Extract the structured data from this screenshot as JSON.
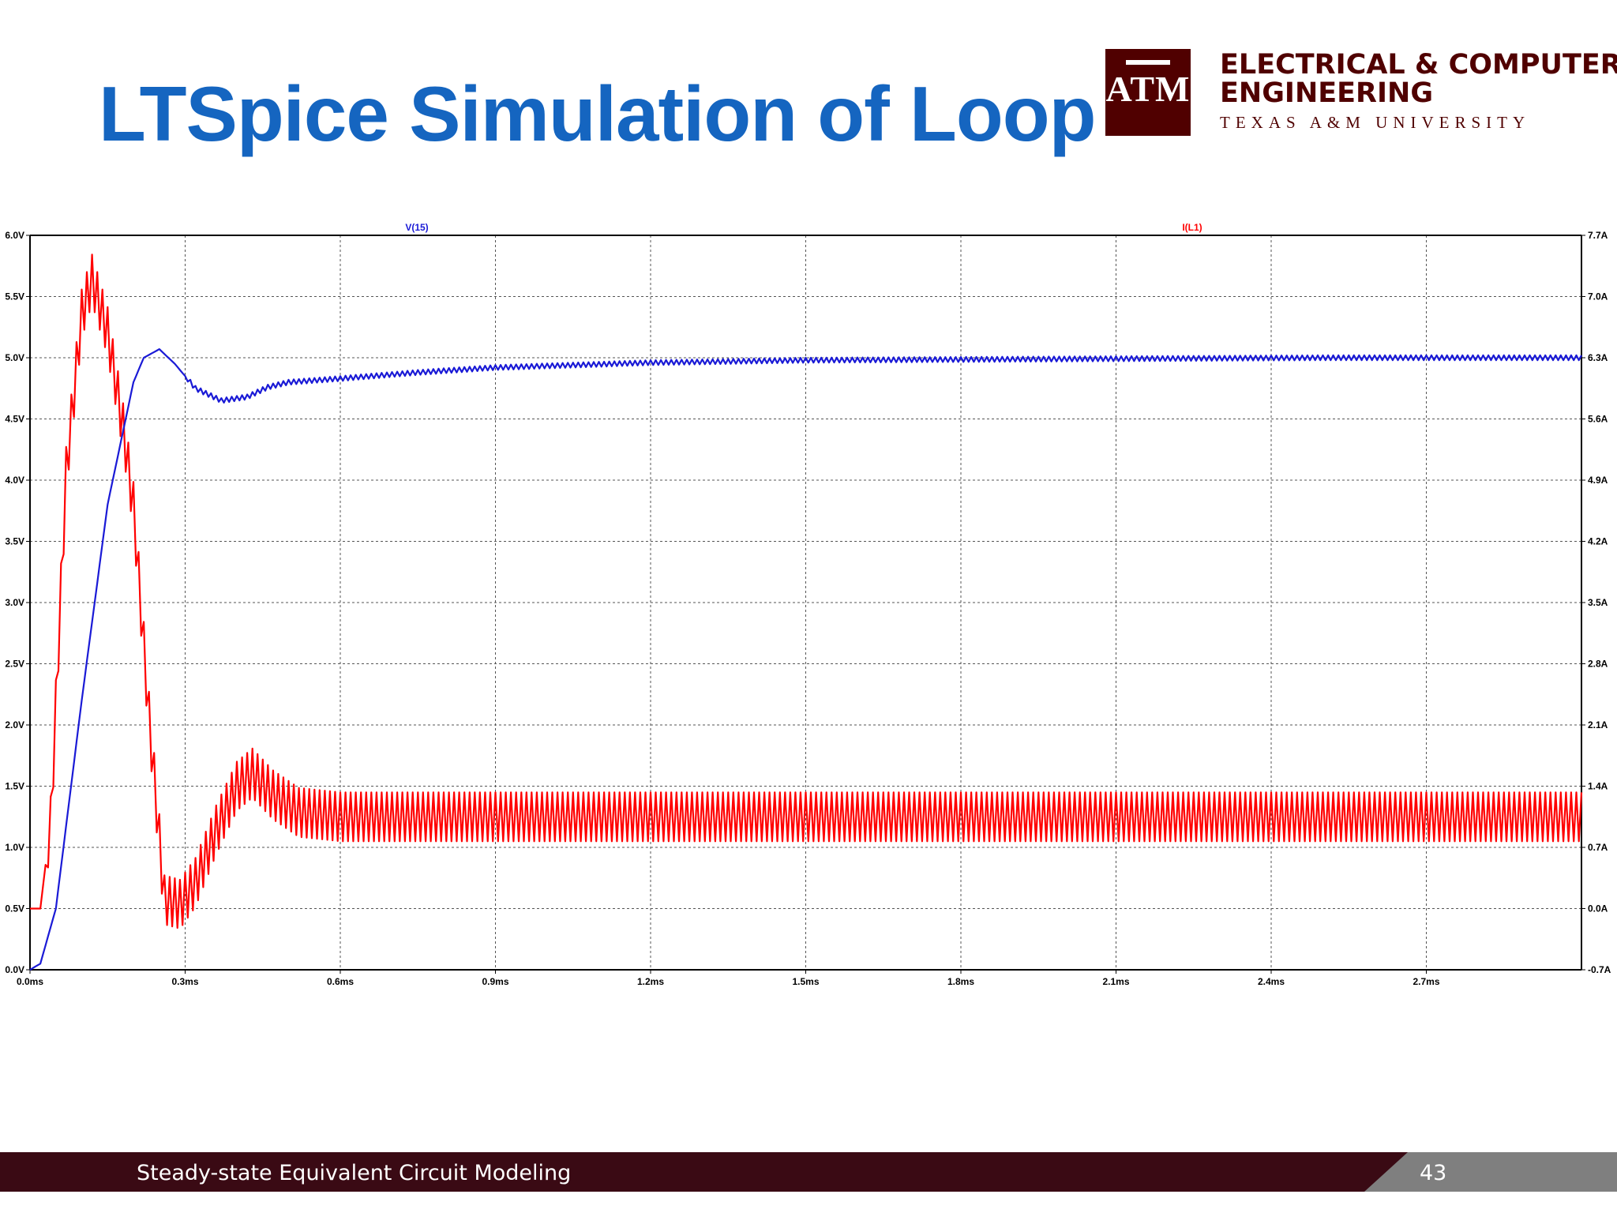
{
  "slide": {
    "title": "LTSpice Simulation of Loop",
    "dept_line1": "ELECTRICAL & COMPUTER",
    "dept_line2": "ENGINEERING",
    "university": "TEXAS A&M UNIVERSITY",
    "logo_text": "ATM",
    "footer_text": "Steady-state Equivalent Circuit Modeling",
    "page_number": "43",
    "colors": {
      "title": "#1565c0",
      "maroon": "#500000",
      "footer_bg": "#3a0a14",
      "footer_grey": "#7f7f7f"
    }
  },
  "chart_data": {
    "type": "line",
    "title": "",
    "xlim": [
      0,
      3.0
    ],
    "x_ticks": [
      "0.0ms",
      "0.3ms",
      "0.6ms",
      "0.9ms",
      "1.2ms",
      "1.5ms",
      "1.8ms",
      "2.1ms",
      "2.4ms",
      "2.7ms"
    ],
    "y_left": {
      "lim": [
        0,
        6.0
      ],
      "ticks": [
        "6.0V",
        "5.5V",
        "5.0V",
        "4.5V",
        "4.0V",
        "3.5V",
        "3.0V",
        "2.5V",
        "2.0V",
        "1.5V",
        "1.0V",
        "0.5V",
        "0.0V"
      ]
    },
    "y_right": {
      "lim": [
        -0.7,
        7.7
      ],
      "ticks": [
        "7.7A",
        "7.0A",
        "6.3A",
        "5.6A",
        "4.9A",
        "4.2A",
        "3.5A",
        "2.8A",
        "2.1A",
        "1.4A",
        "0.7A",
        "0.0A",
        "-0.7A"
      ]
    },
    "grid": true,
    "series": [
      {
        "name": "V(15)",
        "color": "#1a1ad6",
        "axis": "left",
        "ripple": 0.02,
        "x": [
          0,
          0.02,
          0.05,
          0.1,
          0.15,
          0.2,
          0.22,
          0.25,
          0.28,
          0.32,
          0.37,
          0.42,
          0.46,
          0.5,
          0.6,
          0.75,
          0.9,
          1.2,
          1.5,
          2.0,
          2.5,
          3.0
        ],
        "y": [
          0,
          0.05,
          0.5,
          2.2,
          3.8,
          4.8,
          5.0,
          5.07,
          4.95,
          4.75,
          4.65,
          4.68,
          4.76,
          4.8,
          4.83,
          4.88,
          4.92,
          4.96,
          4.98,
          4.99,
          5.0,
          5.0
        ]
      },
      {
        "name": "I(L1)",
        "color": "#ff0000",
        "axis": "right",
        "ripple": 0.28,
        "x": [
          0,
          0.02,
          0.04,
          0.07,
          0.1,
          0.12,
          0.15,
          0.18,
          0.2,
          0.23,
          0.26,
          0.29,
          0.32,
          0.36,
          0.4,
          0.43,
          0.47,
          0.52,
          0.6,
          0.8,
          1.0,
          1.5,
          2.0,
          2.5,
          3.0
        ],
        "y": [
          0.0,
          0.0,
          1.0,
          5.0,
          6.8,
          7.2,
          6.6,
          5.5,
          4.6,
          2.2,
          0.1,
          0.05,
          0.3,
          0.9,
          1.4,
          1.55,
          1.3,
          1.1,
          1.05,
          1.05,
          1.05,
          1.05,
          1.05,
          1.05,
          1.05
        ]
      }
    ]
  }
}
